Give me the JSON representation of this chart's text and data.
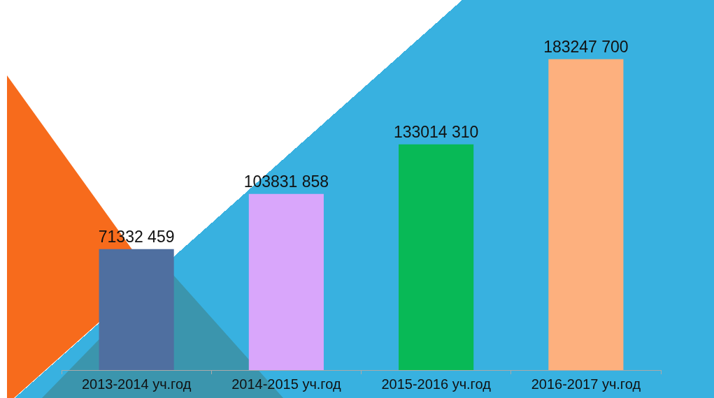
{
  "chart_data": {
    "type": "bar",
    "categories": [
      "2013-2014 уч.год",
      "2014-2015 уч.год",
      "2015-2016 уч.год",
      "2016-2017 уч.год"
    ],
    "values": [
      71332459,
      103831858,
      133014310,
      183247700
    ],
    "colors": [
      "#4f6fa0",
      "#d9a6fb",
      "#08b956",
      "#fdb07e"
    ],
    "value_labels": [
      "71332 459",
      "103831 858",
      "133014 310",
      "183247 700"
    ],
    "tick_labels": "x",
    "grid": false,
    "legend": false
  }
}
